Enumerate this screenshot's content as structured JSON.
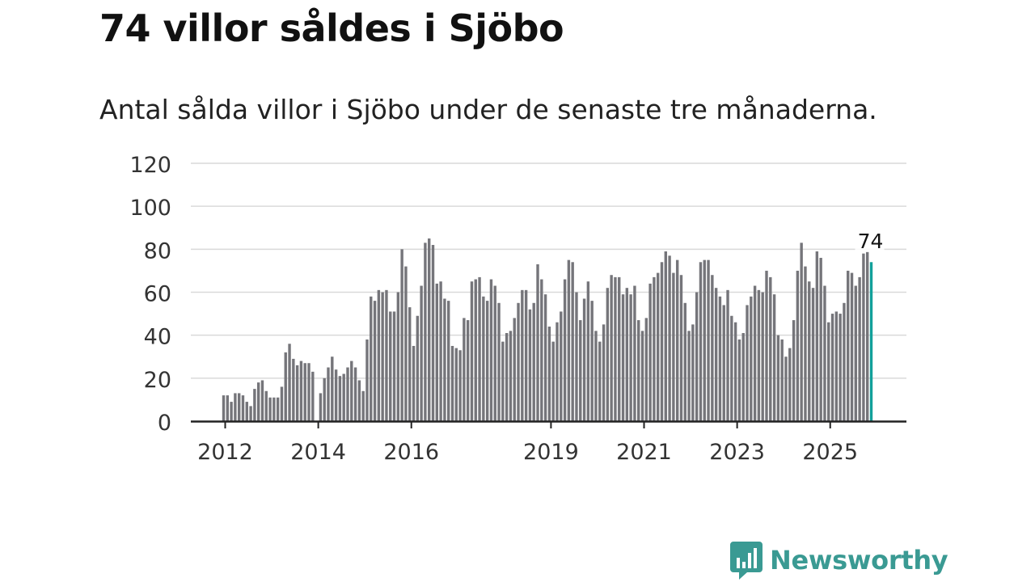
{
  "title": "74 villor såldes i Sjöbo",
  "subtitle": "Antal sålda villor i Sjöbo under de senaste tre månaderna.",
  "logo": {
    "text": "Newsworthy",
    "icon": "bar-chart-speech-bubble-icon"
  },
  "colors": {
    "bar": "#75757a",
    "highlight": "#12a09a",
    "grid": "#d9d9d9",
    "axis": "#222222",
    "brand": "#3a9a93"
  },
  "chart_data": {
    "type": "bar",
    "title": "74 villor såldes i Sjöbo",
    "xlabel": "",
    "ylabel": "",
    "ylim": [
      0,
      120
    ],
    "y_ticks": [
      "0",
      "20",
      "40",
      "60",
      "80",
      "100",
      "120"
    ],
    "x_tick_labels": [
      {
        "label": "2012",
        "index": 0
      },
      {
        "label": "2014",
        "index": 24
      },
      {
        "label": "2016",
        "index": 48
      },
      {
        "label": "2019",
        "index": 84
      },
      {
        "label": "2021",
        "index": 108
      },
      {
        "label": "2023",
        "index": 132
      },
      {
        "label": "2025",
        "index": 156
      }
    ],
    "first_period": "2012-01",
    "last_value_label": "74",
    "series": [
      {
        "name": "Antal sålda villor (rullande tre månader)",
        "values": [
          12,
          12,
          9,
          13,
          13,
          12,
          9,
          7,
          15,
          18,
          19,
          14,
          11,
          11,
          11,
          16,
          32,
          36,
          29,
          26,
          28,
          27,
          27,
          23,
          0,
          13,
          20,
          25,
          30,
          24,
          21,
          22,
          25,
          28,
          25,
          19,
          14,
          38,
          58,
          56,
          61,
          60,
          61,
          51,
          51,
          60,
          80,
          72,
          53,
          35,
          49,
          63,
          83,
          85,
          82,
          64,
          65,
          57,
          56,
          35,
          34,
          33,
          48,
          47,
          65,
          66,
          67,
          58,
          56,
          66,
          63,
          55,
          37,
          41,
          42,
          48,
          55,
          61,
          61,
          52,
          55,
          73,
          66,
          59,
          44,
          37,
          46,
          51,
          66,
          75,
          74,
          60,
          47,
          57,
          65,
          56,
          42,
          37,
          45,
          62,
          68,
          67,
          67,
          59,
          62,
          59,
          63,
          47,
          42,
          48,
          64,
          67,
          69,
          74,
          79,
          77,
          69,
          75,
          68,
          55,
          42,
          45,
          60,
          74,
          75,
          75,
          68,
          62,
          58,
          54,
          61,
          49,
          46,
          38,
          41,
          54,
          58,
          63,
          61,
          60,
          70,
          67,
          59,
          40,
          38,
          30,
          34,
          47,
          70,
          83,
          72,
          65,
          62,
          79,
          76,
          63,
          46,
          50,
          51,
          50,
          55,
          70,
          69,
          63,
          67,
          78,
          79,
          74
        ]
      }
    ]
  }
}
